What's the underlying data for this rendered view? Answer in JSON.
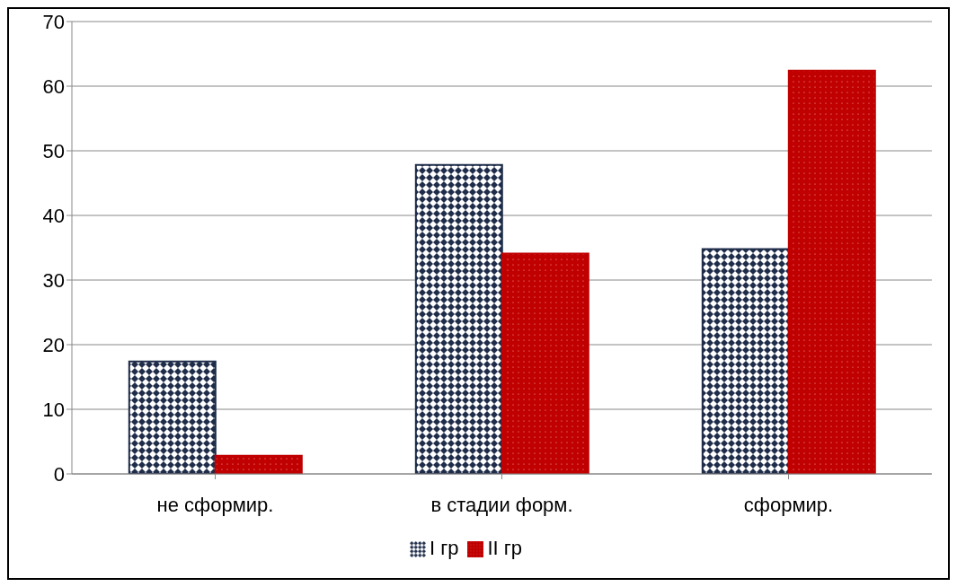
{
  "chart_data": {
    "type": "bar",
    "categories": [
      "не сформир.",
      "в стадии форм.",
      "сформир."
    ],
    "series": [
      {
        "name": "I гр",
        "color": "#1f2d4a",
        "values": [
          17.4,
          47.8,
          34.8
        ]
      },
      {
        "name": "II гр",
        "color": "#c00000",
        "values": [
          2.8,
          34.1,
          62.4
        ]
      }
    ],
    "ylim": [
      0,
      70
    ],
    "yticks": [
      0,
      10,
      20,
      30,
      40,
      50,
      60,
      70
    ],
    "grid": "y",
    "legend": "bottom"
  }
}
